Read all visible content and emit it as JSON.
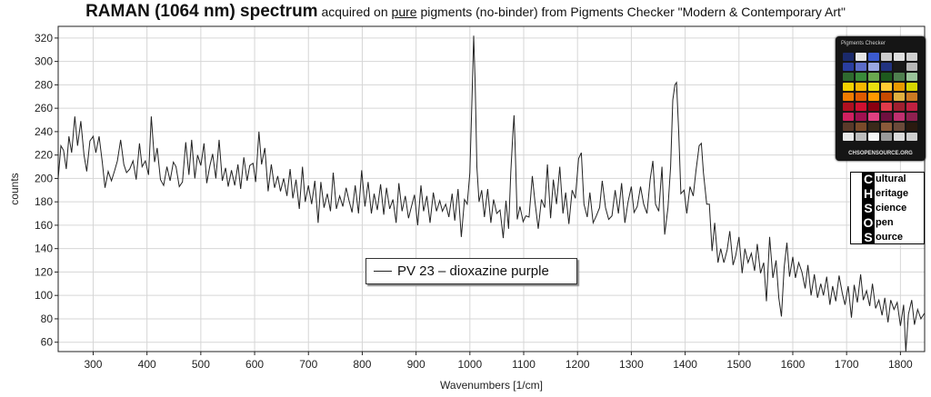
{
  "title": {
    "part1": "RAMAN (1064 nm) spectrum",
    "part2": " acquired on ",
    "part3": "pure",
    "part4": " pigments (no-binder) from Pigments Checker \"Modern & Contemporary Art\""
  },
  "logo": {
    "photo_caption": "CHSOPENSOURCE.ORG",
    "photo_title": "Pigments Checker",
    "swatch_colors": [
      "#1b2a6b",
      "#e6e6e6",
      "#3b5bd0",
      "#cccccc",
      "#e0e0e0",
      "#d0d0d0",
      "#2a3ea0",
      "#5c6cc8",
      "#9aa7e0",
      "#223380",
      "#1a1a1a",
      "#b8b8b8",
      "#2f6a2f",
      "#3a8a3a",
      "#6aa84f",
      "#1e5a1e",
      "#4f7f4f",
      "#9ac49a",
      "#f2d200",
      "#f5b800",
      "#e8e010",
      "#ffcc33",
      "#e89a00",
      "#d6d600",
      "#f07c00",
      "#e05a00",
      "#ff9900",
      "#c74a00",
      "#e0b040",
      "#cc7a22",
      "#b01020",
      "#d01030",
      "#8a0010",
      "#e03a4a",
      "#a02030",
      "#c02040",
      "#d02060",
      "#a01050",
      "#e04080",
      "#701040",
      "#c03070",
      "#902050",
      "#5a3a2a",
      "#7a4a2a",
      "#3a2a1a",
      "#8a5a3a",
      "#6a4a3a",
      "#2a1a10",
      "#e8e8e8",
      "#bdbdbd",
      "#f5f5f5",
      "#9a9a9a",
      "#dcdcdc",
      "#cfcfcf"
    ],
    "letters": [
      "C",
      "H",
      "S",
      "O",
      "S"
    ],
    "words": [
      "ultural",
      "eritage",
      "cience",
      "pen",
      "ource"
    ]
  },
  "legend": {
    "label": "PV 23 – dioxazine purple"
  },
  "chart_data": {
    "type": "line",
    "title": "RAMAN (1064 nm) spectrum acquired on pure pigments (no-binder) from Pigments Checker \"Modern & Contemporary Art\"",
    "xlabel": "Wavenumbers [1/cm]",
    "ylabel": "counts",
    "xlim": [
      235,
      1845
    ],
    "ylim": [
      52,
      330
    ],
    "xticks": [
      300,
      400,
      500,
      600,
      700,
      800,
      900,
      1000,
      1100,
      1200,
      1300,
      1400,
      1500,
      1600,
      1700,
      1800
    ],
    "yticks": [
      60,
      80,
      100,
      120,
      140,
      160,
      180,
      200,
      220,
      240,
      260,
      280,
      300,
      320
    ],
    "grid": true,
    "legend_position": "center-bottom",
    "series": [
      {
        "name": "PV 23 – dioxazine purple",
        "color": "#222222",
        "points": [
          [
            235,
            200
          ],
          [
            240,
            228
          ],
          [
            245,
            224
          ],
          [
            250,
            208
          ],
          [
            255,
            236
          ],
          [
            260,
            222
          ],
          [
            266,
            253
          ],
          [
            271,
            228
          ],
          [
            277,
            249
          ],
          [
            283,
            220
          ],
          [
            288,
            206
          ],
          [
            294,
            232
          ],
          [
            300,
            236
          ],
          [
            305,
            222
          ],
          [
            311,
            236
          ],
          [
            317,
            214
          ],
          [
            322,
            192
          ],
          [
            328,
            206
          ],
          [
            334,
            198
          ],
          [
            340,
            207
          ],
          [
            345,
            215
          ],
          [
            351,
            233
          ],
          [
            357,
            212
          ],
          [
            362,
            205
          ],
          [
            368,
            208
          ],
          [
            374,
            215
          ],
          [
            380,
            199
          ],
          [
            386,
            230
          ],
          [
            391,
            210
          ],
          [
            397,
            215
          ],
          [
            403,
            203
          ],
          [
            408,
            253
          ],
          [
            414,
            214
          ],
          [
            419,
            226
          ],
          [
            425,
            199
          ],
          [
            431,
            194
          ],
          [
            437,
            210
          ],
          [
            443,
            198
          ],
          [
            449,
            214
          ],
          [
            454,
            210
          ],
          [
            460,
            193
          ],
          [
            466,
            197
          ],
          [
            472,
            231
          ],
          [
            478,
            203
          ],
          [
            483,
            233
          ],
          [
            489,
            200
          ],
          [
            494,
            220
          ],
          [
            500,
            211
          ],
          [
            506,
            230
          ],
          [
            511,
            196
          ],
          [
            517,
            211
          ],
          [
            522,
            221
          ],
          [
            528,
            200
          ],
          [
            534,
            233
          ],
          [
            540,
            198
          ],
          [
            546,
            209
          ],
          [
            551,
            193
          ],
          [
            557,
            207
          ],
          [
            563,
            194
          ],
          [
            569,
            212
          ],
          [
            574,
            191
          ],
          [
            580,
            218
          ],
          [
            586,
            198
          ],
          [
            591,
            211
          ],
          [
            597,
            213
          ],
          [
            602,
            197
          ],
          [
            608,
            240
          ],
          [
            613,
            212
          ],
          [
            619,
            226
          ],
          [
            625,
            189
          ],
          [
            631,
            212
          ],
          [
            637,
            192
          ],
          [
            643,
            202
          ],
          [
            648,
            189
          ],
          [
            654,
            200
          ],
          [
            660,
            185
          ],
          [
            666,
            208
          ],
          [
            671,
            183
          ],
          [
            677,
            199
          ],
          [
            683,
            174
          ],
          [
            689,
            210
          ],
          [
            694,
            180
          ],
          [
            700,
            194
          ],
          [
            706,
            178
          ],
          [
            712,
            198
          ],
          [
            718,
            162
          ],
          [
            723,
            197
          ],
          [
            729,
            175
          ],
          [
            735,
            187
          ],
          [
            741,
            172
          ],
          [
            746,
            205
          ],
          [
            752,
            174
          ],
          [
            758,
            185
          ],
          [
            764,
            176
          ],
          [
            770,
            192
          ],
          [
            775,
            182
          ],
          [
            781,
            171
          ],
          [
            787,
            194
          ],
          [
            793,
            170
          ],
          [
            799,
            207
          ],
          [
            805,
            176
          ],
          [
            811,
            197
          ],
          [
            817,
            170
          ],
          [
            822,
            187
          ],
          [
            828,
            173
          ],
          [
            834,
            195
          ],
          [
            840,
            169
          ],
          [
            845,
            192
          ],
          [
            851,
            174
          ],
          [
            857,
            182
          ],
          [
            863,
            162
          ],
          [
            868,
            196
          ],
          [
            874,
            172
          ],
          [
            880,
            185
          ],
          [
            886,
            166
          ],
          [
            892,
            177
          ],
          [
            897,
            186
          ],
          [
            903,
            160
          ],
          [
            909,
            194
          ],
          [
            914,
            172
          ],
          [
            920,
            185
          ],
          [
            926,
            162
          ],
          [
            932,
            188
          ],
          [
            938,
            172
          ],
          [
            944,
            181
          ],
          [
            949,
            172
          ],
          [
            955,
            178
          ],
          [
            961,
            167
          ],
          [
            967,
            187
          ],
          [
            972,
            164
          ],
          [
            978,
            191
          ],
          [
            984,
            150
          ],
          [
            990,
            182
          ],
          [
            995,
            178
          ],
          [
            1000,
            205
          ],
          [
            1004,
            270
          ],
          [
            1007,
            322
          ],
          [
            1010,
            280
          ],
          [
            1013,
            210
          ],
          [
            1017,
            180
          ],
          [
            1022,
            190
          ],
          [
            1027,
            167
          ],
          [
            1033,
            191
          ],
          [
            1039,
            162
          ],
          [
            1044,
            182
          ],
          [
            1050,
            170
          ],
          [
            1056,
            173
          ],
          [
            1062,
            149
          ],
          [
            1067,
            181
          ],
          [
            1072,
            157
          ],
          [
            1076,
            205
          ],
          [
            1080,
            240
          ],
          [
            1082,
            254
          ],
          [
            1084,
            230
          ],
          [
            1088,
            165
          ],
          [
            1093,
            176
          ],
          [
            1099,
            163
          ],
          [
            1104,
            168
          ],
          [
            1110,
            167
          ],
          [
            1116,
            202
          ],
          [
            1121,
            180
          ],
          [
            1127,
            157
          ],
          [
            1133,
            182
          ],
          [
            1139,
            175
          ],
          [
            1144,
            212
          ],
          [
            1150,
            166
          ],
          [
            1155,
            199
          ],
          [
            1161,
            178
          ],
          [
            1167,
            210
          ],
          [
            1173,
            170
          ],
          [
            1178,
            188
          ],
          [
            1184,
            161
          ],
          [
            1190,
            190
          ],
          [
            1196,
            183
          ],
          [
            1202,
            217
          ],
          [
            1207,
            222
          ],
          [
            1212,
            178
          ],
          [
            1218,
            167
          ],
          [
            1223,
            188
          ],
          [
            1229,
            162
          ],
          [
            1235,
            168
          ],
          [
            1241,
            175
          ],
          [
            1246,
            198
          ],
          [
            1252,
            175
          ],
          [
            1258,
            165
          ],
          [
            1264,
            168
          ],
          [
            1270,
            190
          ],
          [
            1276,
            170
          ],
          [
            1282,
            196
          ],
          [
            1288,
            162
          ],
          [
            1294,
            180
          ],
          [
            1300,
            193
          ],
          [
            1305,
            171
          ],
          [
            1311,
            176
          ],
          [
            1317,
            193
          ],
          [
            1323,
            178
          ],
          [
            1329,
            170
          ],
          [
            1335,
            199
          ],
          [
            1340,
            215
          ],
          [
            1345,
            178
          ],
          [
            1351,
            172
          ],
          [
            1357,
            210
          ],
          [
            1362,
            152
          ],
          [
            1368,
            175
          ],
          [
            1373,
            210
          ],
          [
            1377,
            267
          ],
          [
            1381,
            280
          ],
          [
            1384,
            282
          ],
          [
            1388,
            240
          ],
          [
            1392,
            187
          ],
          [
            1398,
            190
          ],
          [
            1403,
            170
          ],
          [
            1409,
            193
          ],
          [
            1415,
            185
          ],
          [
            1420,
            206
          ],
          [
            1426,
            228
          ],
          [
            1430,
            230
          ],
          [
            1434,
            205
          ],
          [
            1440,
            178
          ],
          [
            1445,
            178
          ],
          [
            1450,
            138
          ],
          [
            1455,
            162
          ],
          [
            1461,
            128
          ],
          [
            1466,
            140
          ],
          [
            1472,
            128
          ],
          [
            1478,
            139
          ],
          [
            1483,
            155
          ],
          [
            1489,
            126
          ],
          [
            1494,
            134
          ],
          [
            1500,
            150
          ],
          [
            1506,
            119
          ],
          [
            1511,
            140
          ],
          [
            1517,
            128
          ],
          [
            1523,
            136
          ],
          [
            1529,
            121
          ],
          [
            1534,
            144
          ],
          [
            1540,
            119
          ],
          [
            1546,
            128
          ],
          [
            1551,
            95
          ],
          [
            1557,
            150
          ],
          [
            1563,
            115
          ],
          [
            1569,
            130
          ],
          [
            1574,
            98
          ],
          [
            1579,
            82
          ],
          [
            1584,
            124
          ],
          [
            1589,
            145
          ],
          [
            1594,
            116
          ],
          [
            1600,
            133
          ],
          [
            1605,
            115
          ],
          [
            1611,
            128
          ],
          [
            1617,
            120
          ],
          [
            1623,
            106
          ],
          [
            1628,
            126
          ],
          [
            1634,
            100
          ],
          [
            1640,
            118
          ],
          [
            1646,
            98
          ],
          [
            1652,
            110
          ],
          [
            1657,
            100
          ],
          [
            1663,
            116
          ],
          [
            1669,
            92
          ],
          [
            1674,
            108
          ],
          [
            1680,
            95
          ],
          [
            1686,
            117
          ],
          [
            1692,
            102
          ],
          [
            1697,
            92
          ],
          [
            1703,
            108
          ],
          [
            1709,
            81
          ],
          [
            1714,
            109
          ],
          [
            1720,
            94
          ],
          [
            1726,
            118
          ],
          [
            1731,
            96
          ],
          [
            1737,
            104
          ],
          [
            1743,
            91
          ],
          [
            1748,
            110
          ],
          [
            1754,
            89
          ],
          [
            1760,
            96
          ],
          [
            1766,
            83
          ],
          [
            1771,
            98
          ],
          [
            1777,
            77
          ],
          [
            1782,
            96
          ],
          [
            1788,
            88
          ],
          [
            1794,
            94
          ],
          [
            1800,
            74
          ],
          [
            1806,
            92
          ],
          [
            1810,
            52
          ],
          [
            1815,
            84
          ],
          [
            1821,
            96
          ],
          [
            1826,
            75
          ],
          [
            1832,
            88
          ],
          [
            1838,
            80
          ],
          [
            1845,
            85
          ]
        ]
      }
    ]
  }
}
